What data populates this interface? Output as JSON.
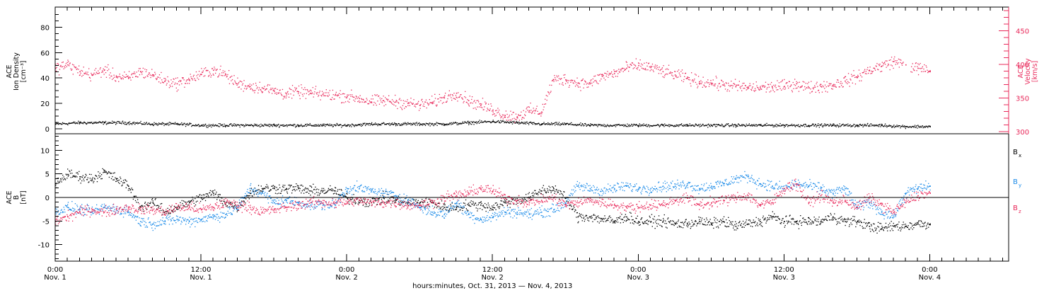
{
  "colors": {
    "axis": "#000000",
    "black_series": "#000000",
    "pink_series": "#e8285a",
    "blue_series": "#1a8ae8"
  },
  "xaxis": {
    "title": "hours:minutes, Oct. 31, 2013 — Nov.  4, 2013",
    "ticks": [
      {
        "hour": 0,
        "time": "0:00",
        "date": "Nov. 1"
      },
      {
        "hour": 12,
        "time": "12:00",
        "date": "Nov. 1"
      },
      {
        "hour": 24,
        "time": "0:00",
        "date": "Nov. 2"
      },
      {
        "hour": 36,
        "time": "12:00",
        "date": "Nov. 2"
      },
      {
        "hour": 48,
        "time": "0:00",
        "date": "Nov. 3"
      },
      {
        "hour": 60,
        "time": "12:00",
        "date": "Nov. 3"
      },
      {
        "hour": 72,
        "time": "0:00",
        "date": "Nov. 4"
      }
    ],
    "range_hours": [
      0,
      78.5
    ]
  },
  "chart_data": [
    {
      "type": "scatter",
      "panel": "top",
      "ylabel_left": [
        "ACE",
        "Ion Density",
        "[cm⁻³]"
      ],
      "ylabel_right": [
        "ACE",
        "Velocity",
        "[km/s]"
      ],
      "ylim_left": [
        -4,
        96
      ],
      "ylim_right": [
        297,
        485
      ],
      "yticks_left": [
        0,
        20,
        40,
        60,
        80
      ],
      "yticks_right": [
        300,
        350,
        400,
        450
      ],
      "series": [
        {
          "axis": "left",
          "color": "#000000",
          "x": [
            0,
            2,
            4,
            6,
            8,
            10,
            12,
            14,
            16,
            18,
            20,
            22,
            24,
            26,
            28,
            30,
            32,
            34,
            36,
            38,
            40,
            42,
            44,
            46,
            48,
            50,
            52,
            54,
            56,
            58,
            60,
            62,
            64,
            66,
            68,
            70,
            72
          ],
          "y": [
            4,
            5,
            5,
            5,
            4,
            4,
            3,
            3,
            3,
            3,
            3,
            3,
            3,
            4,
            4,
            4,
            4,
            5,
            6,
            5,
            4,
            4,
            3,
            3,
            3,
            3,
            3,
            3,
            3,
            3,
            3,
            3,
            3,
            3,
            3,
            2,
            2
          ]
        },
        {
          "axis": "right",
          "color": "#e8285a",
          "x": [
            0,
            1,
            2,
            3,
            4,
            5,
            6,
            7,
            8,
            9,
            10,
            11,
            12,
            13,
            14,
            15,
            16,
            17,
            18,
            19,
            20,
            21,
            22,
            23,
            24,
            25,
            26,
            27,
            28,
            29,
            30,
            31,
            32,
            33,
            34,
            35,
            36,
            37,
            38,
            39,
            40,
            41,
            42,
            43,
            44,
            45,
            46,
            47,
            48,
            49,
            50,
            51,
            52,
            53,
            54,
            55,
            56,
            57,
            58,
            59,
            60,
            61,
            62,
            63,
            64,
            65,
            66,
            67,
            68,
            69,
            70,
            71,
            72
          ],
          "y": [
            395,
            400,
            390,
            385,
            392,
            382,
            380,
            390,
            385,
            376,
            372,
            378,
            386,
            392,
            385,
            372,
            368,
            366,
            361,
            357,
            360,
            358,
            356,
            355,
            353,
            350,
            345,
            347,
            345,
            343,
            340,
            344,
            351,
            358,
            347,
            340,
            333,
            325,
            323,
            332,
            330,
            378,
            378,
            373,
            372,
            383,
            387,
            395,
            399,
            396,
            390,
            385,
            380,
            375,
            373,
            370,
            368,
            366,
            366,
            367,
            368,
            372,
            366,
            368,
            370,
            376,
            382,
            392,
            398,
            405,
            400,
            395,
            390
          ]
        }
      ]
    },
    {
      "type": "scatter",
      "panel": "bottom",
      "ylabel_left": [
        "ACE",
        "B",
        "[nT]"
      ],
      "ylim": [
        -13.5,
        13.5
      ],
      "yticks": [
        -10,
        -5,
        0,
        5,
        10
      ],
      "legend": [
        {
          "label": "B",
          "sub": "x",
          "color": "#000000"
        },
        {
          "label": "B",
          "sub": "y",
          "color": "#1a8ae8"
        },
        {
          "label": "B",
          "sub": "z",
          "color": "#e8285a"
        }
      ],
      "series": [
        {
          "name": "Bx",
          "color": "#000000",
          "x": [
            0,
            1,
            2,
            3,
            4,
            5,
            6,
            7,
            8,
            9,
            10,
            11,
            12,
            13,
            14,
            15,
            16,
            17,
            18,
            19,
            20,
            21,
            22,
            23,
            24,
            25,
            26,
            27,
            28,
            29,
            30,
            31,
            32,
            33,
            34,
            35,
            36,
            37,
            38,
            39,
            40,
            41,
            42,
            43,
            44,
            45,
            46,
            47,
            48,
            49,
            50,
            51,
            52,
            53,
            54,
            55,
            56,
            57,
            58,
            59,
            60,
            61,
            62,
            63,
            64,
            65,
            66,
            67,
            68,
            69,
            70,
            71,
            72
          ],
          "y": [
            3,
            5,
            4.5,
            4,
            5.5,
            4,
            2.5,
            -2,
            -1,
            -3,
            -2,
            -1,
            0,
            1,
            -1,
            -2,
            1,
            2,
            2,
            2,
            2,
            1.5,
            1.5,
            1.5,
            0,
            -0.5,
            -1,
            0,
            -0.5,
            -1,
            -1,
            -1,
            -2,
            -2,
            -1.5,
            -1.5,
            -2,
            -1,
            -0.5,
            0,
            1.5,
            2,
            0,
            -4,
            -4,
            -4.5,
            -5,
            -4,
            -5,
            -5,
            -5,
            -5.5,
            -5.5,
            -5,
            -5.5,
            -5,
            -6,
            -5.5,
            -5,
            -4,
            -5,
            -5,
            -5,
            -5,
            -4,
            -5,
            -5,
            -6,
            -6.5,
            -6,
            -6,
            -5.5,
            -5.5
          ]
        },
        {
          "name": "By",
          "color": "#1a8ae8",
          "x": [
            0,
            1,
            2,
            3,
            4,
            5,
            6,
            7,
            8,
            9,
            10,
            11,
            12,
            13,
            14,
            15,
            16,
            17,
            18,
            19,
            20,
            21,
            22,
            23,
            24,
            25,
            26,
            27,
            28,
            29,
            30,
            31,
            32,
            33,
            34,
            35,
            36,
            37,
            38,
            39,
            40,
            41,
            42,
            43,
            44,
            45,
            46,
            47,
            48,
            49,
            50,
            51,
            52,
            53,
            54,
            55,
            56,
            57,
            58,
            59,
            60,
            61,
            62,
            63,
            64,
            65,
            66,
            67,
            68,
            69,
            70,
            71,
            72
          ],
          "y": [
            -3,
            -2,
            -2.5,
            -3,
            -2,
            -2.5,
            -3,
            -5,
            -5.5,
            -5,
            -4.5,
            -5,
            -4.5,
            -4,
            -3.5,
            -2,
            2,
            1,
            -1,
            -0.5,
            -1,
            -1.5,
            -1.5,
            -1.5,
            2,
            2,
            1.5,
            1,
            0.5,
            -0.5,
            -2,
            -3,
            -3.5,
            -1,
            -3.5,
            -4.5,
            -4,
            -3,
            -3,
            -3.5,
            -3,
            -2.5,
            -1,
            2.5,
            2,
            1.5,
            2,
            2.5,
            2,
            2,
            2.5,
            2.5,
            3,
            2,
            2.5,
            3,
            4,
            4.5,
            3,
            2.5,
            2,
            3,
            2.5,
            2,
            1,
            2,
            -2,
            -1,
            -3,
            -4,
            1,
            2,
            2.5
          ]
        },
        {
          "name": "Bz",
          "color": "#e8285a",
          "x": [
            0,
            1,
            2,
            3,
            4,
            5,
            6,
            7,
            8,
            9,
            10,
            11,
            12,
            13,
            14,
            15,
            16,
            17,
            18,
            19,
            20,
            21,
            22,
            23,
            24,
            25,
            26,
            27,
            28,
            29,
            30,
            31,
            32,
            33,
            34,
            35,
            36,
            37,
            38,
            39,
            40,
            41,
            42,
            43,
            44,
            45,
            46,
            47,
            48,
            49,
            50,
            51,
            52,
            53,
            54,
            55,
            56,
            57,
            58,
            59,
            60,
            61,
            62,
            63,
            64,
            65,
            66,
            67,
            68,
            69,
            70,
            71,
            72
          ],
          "y": [
            -5,
            -4,
            -3,
            -2.5,
            -3,
            -2.5,
            -2,
            -2.5,
            -2.5,
            -3,
            -2,
            -2,
            -2.5,
            -2,
            -1,
            -1.5,
            -2,
            -3,
            -2.5,
            -2,
            -1.5,
            -1,
            -1,
            -1,
            -1,
            -0.5,
            -1,
            -1,
            -1,
            -1.5,
            -1.5,
            -1,
            0,
            0.5,
            1,
            2,
            1.5,
            0,
            -0.5,
            -1,
            -0.5,
            0,
            -1.5,
            -1,
            -0.5,
            -1,
            -1.5,
            -2,
            -2,
            -1.5,
            -1.5,
            -0.5,
            0,
            -1.5,
            -1,
            -0.5,
            0,
            0.5,
            -1.5,
            -1,
            2,
            3,
            -1,
            0.5,
            -1,
            -0.5,
            -2,
            0,
            -1.5,
            -3,
            -1,
            0.5,
            1
          ]
        }
      ]
    }
  ]
}
